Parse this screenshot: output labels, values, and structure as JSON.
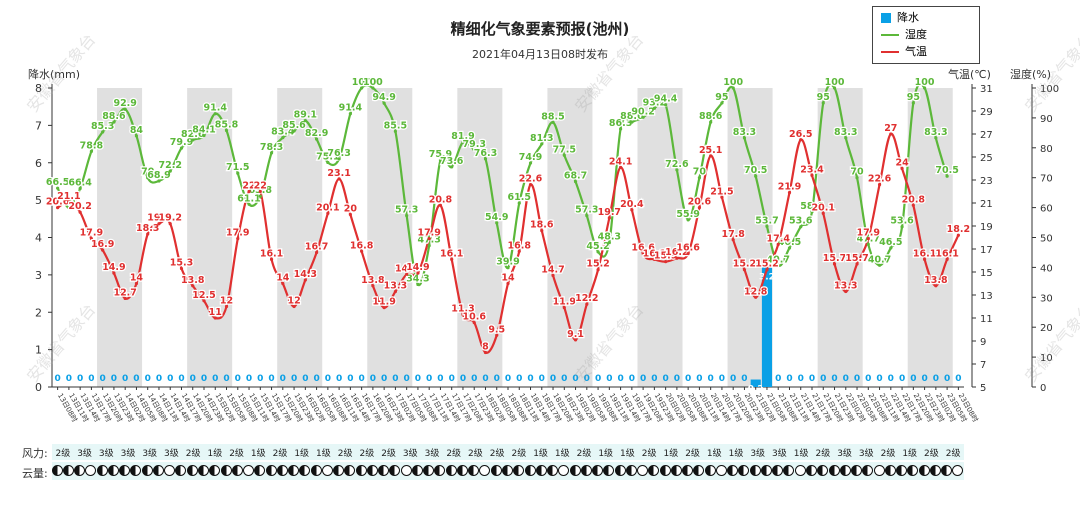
{
  "header": {
    "title": "精细化气象要素预报(池州)",
    "subtitle": "2021年04月13日08时发布"
  },
  "legend": {
    "precip_label": "降水",
    "humidity_label": "湿度",
    "temp_label": "气温"
  },
  "axes": {
    "left_label": "降水(mm)",
    "temp_label": "气温(℃)",
    "humidity_label": "湿度(%)"
  },
  "bottom": {
    "wind_label": "风力:",
    "cloud_label": "云量:",
    "wind_values": [
      "2级",
      "3级",
      "3级",
      "3级",
      "3级",
      "3级",
      "2级",
      "1级",
      "2级",
      "1级",
      "2级",
      "1级",
      "1级",
      "2级",
      "2级",
      "2级",
      "3级",
      "3级",
      "2级",
      "2级",
      "2级",
      "2级",
      "1级",
      "1级",
      "2级",
      "1级",
      "1级",
      "2级",
      "1级",
      "2级",
      "1级",
      "1级",
      "3级",
      "3级",
      "1级",
      "2级",
      "3级",
      "3级",
      "2级",
      "1级",
      "2级",
      "2级"
    ]
  },
  "watermark": "安徽省气象台",
  "colors": {
    "precip": "#0aa0e6",
    "humidity": "#5cb83a",
    "temp": "#e03030",
    "band": "#e0e0e0"
  },
  "chart_data": {
    "type": "line",
    "x_unit": "3-hourly steps from 2021-04-13 08时",
    "x_labels": [
      "13日08时",
      "13日11时",
      "13日14时",
      "13日17时",
      "13日20时",
      "13日23时",
      "14日02时",
      "14日05时",
      "14日08时",
      "14日11时",
      "14日14时",
      "14日17时",
      "14日20时",
      "14日23时",
      "15日02时",
      "15日05时",
      "15日08时",
      "15日11时",
      "15日14时",
      "15日17时",
      "15日20时",
      "15日23时",
      "16日02时",
      "16日05时",
      "16日08时",
      "16日11时",
      "16日14时",
      "16日17时",
      "16日20时",
      "16日23时",
      "17日02时",
      "17日05时",
      "17日08时",
      "17日11时",
      "17日14时",
      "17日17时",
      "17日20时",
      "17日23时",
      "18日02时",
      "18日05时",
      "18日08时",
      "18日11时",
      "18日14时",
      "18日17时",
      "18日20时",
      "18日23时",
      "19日02时",
      "19日05时",
      "19日08时",
      "19日11时",
      "19日14时",
      "19日17时",
      "19日20时",
      "19日23时",
      "20日02时",
      "20日05时",
      "20日08时",
      "20日11时",
      "20日14时",
      "20日17时",
      "20日20时",
      "20日23时",
      "21日02时",
      "21日05时",
      "21日08时",
      "21日11时",
      "21日14时",
      "21日17时",
      "21日20时",
      "21日23时",
      "22日02时",
      "22日05时",
      "22日08时",
      "22日11时",
      "22日14时",
      "22日17时",
      "22日20时",
      "22日23时",
      "23日02时",
      "23日05时",
      "23日08时"
    ],
    "precip_axis": {
      "label": "降水(mm)",
      "range": [
        0,
        8
      ],
      "ticks": [
        0,
        1,
        2,
        3,
        4,
        5,
        6,
        7,
        8
      ]
    },
    "temp_axis": {
      "label": "气温(℃)",
      "range": [
        5,
        31
      ],
      "ticks": [
        5,
        7,
        9,
        11,
        13,
        15,
        17,
        19,
        21,
        23,
        25,
        27,
        29,
        31
      ]
    },
    "humidity_axis": {
      "label": "湿度(%)",
      "range": [
        0,
        100
      ],
      "ticks": [
        0,
        10,
        20,
        30,
        40,
        50,
        60,
        70,
        80,
        90,
        100
      ]
    },
    "series": [
      {
        "name": "降水",
        "type": "bar",
        "values": [
          0,
          0,
          0,
          0,
          0,
          0,
          0,
          0,
          0,
          0,
          0,
          0,
          0,
          0,
          0,
          0,
          0,
          0,
          0,
          0,
          0,
          0,
          0,
          0,
          0,
          0,
          0,
          0,
          0,
          0,
          0,
          0,
          0,
          0,
          0,
          0,
          0,
          0,
          0,
          0,
          0,
          0,
          0,
          0,
          0,
          0,
          0,
          0,
          0,
          0,
          0,
          0,
          0,
          0,
          0,
          0,
          0,
          0,
          0,
          0,
          0,
          0,
          0.2,
          3.2,
          0,
          0,
          0,
          0,
          0,
          0,
          0,
          0,
          0,
          0,
          0,
          0,
          0,
          0,
          0,
          0,
          0
        ]
      },
      {
        "name": "湿度",
        "type": "line",
        "values": [
          66.5,
          60,
          66.4,
          78.8,
          85.3,
          88.6,
          92.9,
          84,
          70,
          68.9,
          72.2,
          79.9,
          82.6,
          84.1,
          91.4,
          85.8,
          71.5,
          61.1,
          63.8,
          78.3,
          83.4,
          85.6,
          89.1,
          82.9,
          75.1,
          76.3,
          91.4,
          100,
          100,
          94.9,
          85.5,
          57.3,
          34.3,
          47.3,
          75.9,
          73.6,
          81.9,
          79.3,
          76.3,
          54.9,
          39.9,
          61.5,
          74.9,
          81.3,
          88.5,
          77.5,
          68.7,
          57.3,
          45.2,
          48.3,
          86.3,
          88.6,
          90.2,
          93.2,
          94.4,
          72.6,
          55.9,
          70,
          88.6,
          95,
          100,
          83.3,
          70.5,
          53.7,
          40.7,
          46.5,
          53.6,
          58.6,
          95,
          100,
          83.3,
          70,
          47.7,
          40.7,
          46.5,
          53.6,
          95,
          100,
          83.3,
          70.5
        ]
      },
      {
        "name": "气温",
        "type": "line",
        "values": [
          20.6,
          21.1,
          20.2,
          17.9,
          16.9,
          14.9,
          12.7,
          14,
          18.3,
          19.2,
          19.2,
          15.3,
          13.8,
          12.5,
          11,
          12,
          17.9,
          22,
          22,
          16.1,
          14,
          12,
          14.3,
          16.7,
          20.1,
          23.1,
          20,
          16.8,
          13.8,
          11.9,
          13.3,
          14.8,
          14.9,
          17.9,
          20.8,
          16.1,
          11.3,
          10.6,
          8,
          9.5,
          14,
          16.8,
          22.6,
          18.6,
          14.7,
          11.9,
          9.1,
          12.2,
          15.2,
          19.7,
          24.1,
          20.4,
          16.6,
          16.1,
          15.9,
          16.2,
          16.6,
          20.6,
          25.1,
          21.5,
          17.8,
          15.2,
          12.8,
          15.2,
          17.4,
          21.9,
          26.5,
          23.4,
          20.1,
          15.7,
          13.3,
          15.7,
          17.9,
          22.6,
          27,
          24,
          20.8,
          16.1,
          13.8,
          16.1,
          18.2
        ]
      }
    ],
    "grid": false,
    "legend_position": "top-right"
  }
}
